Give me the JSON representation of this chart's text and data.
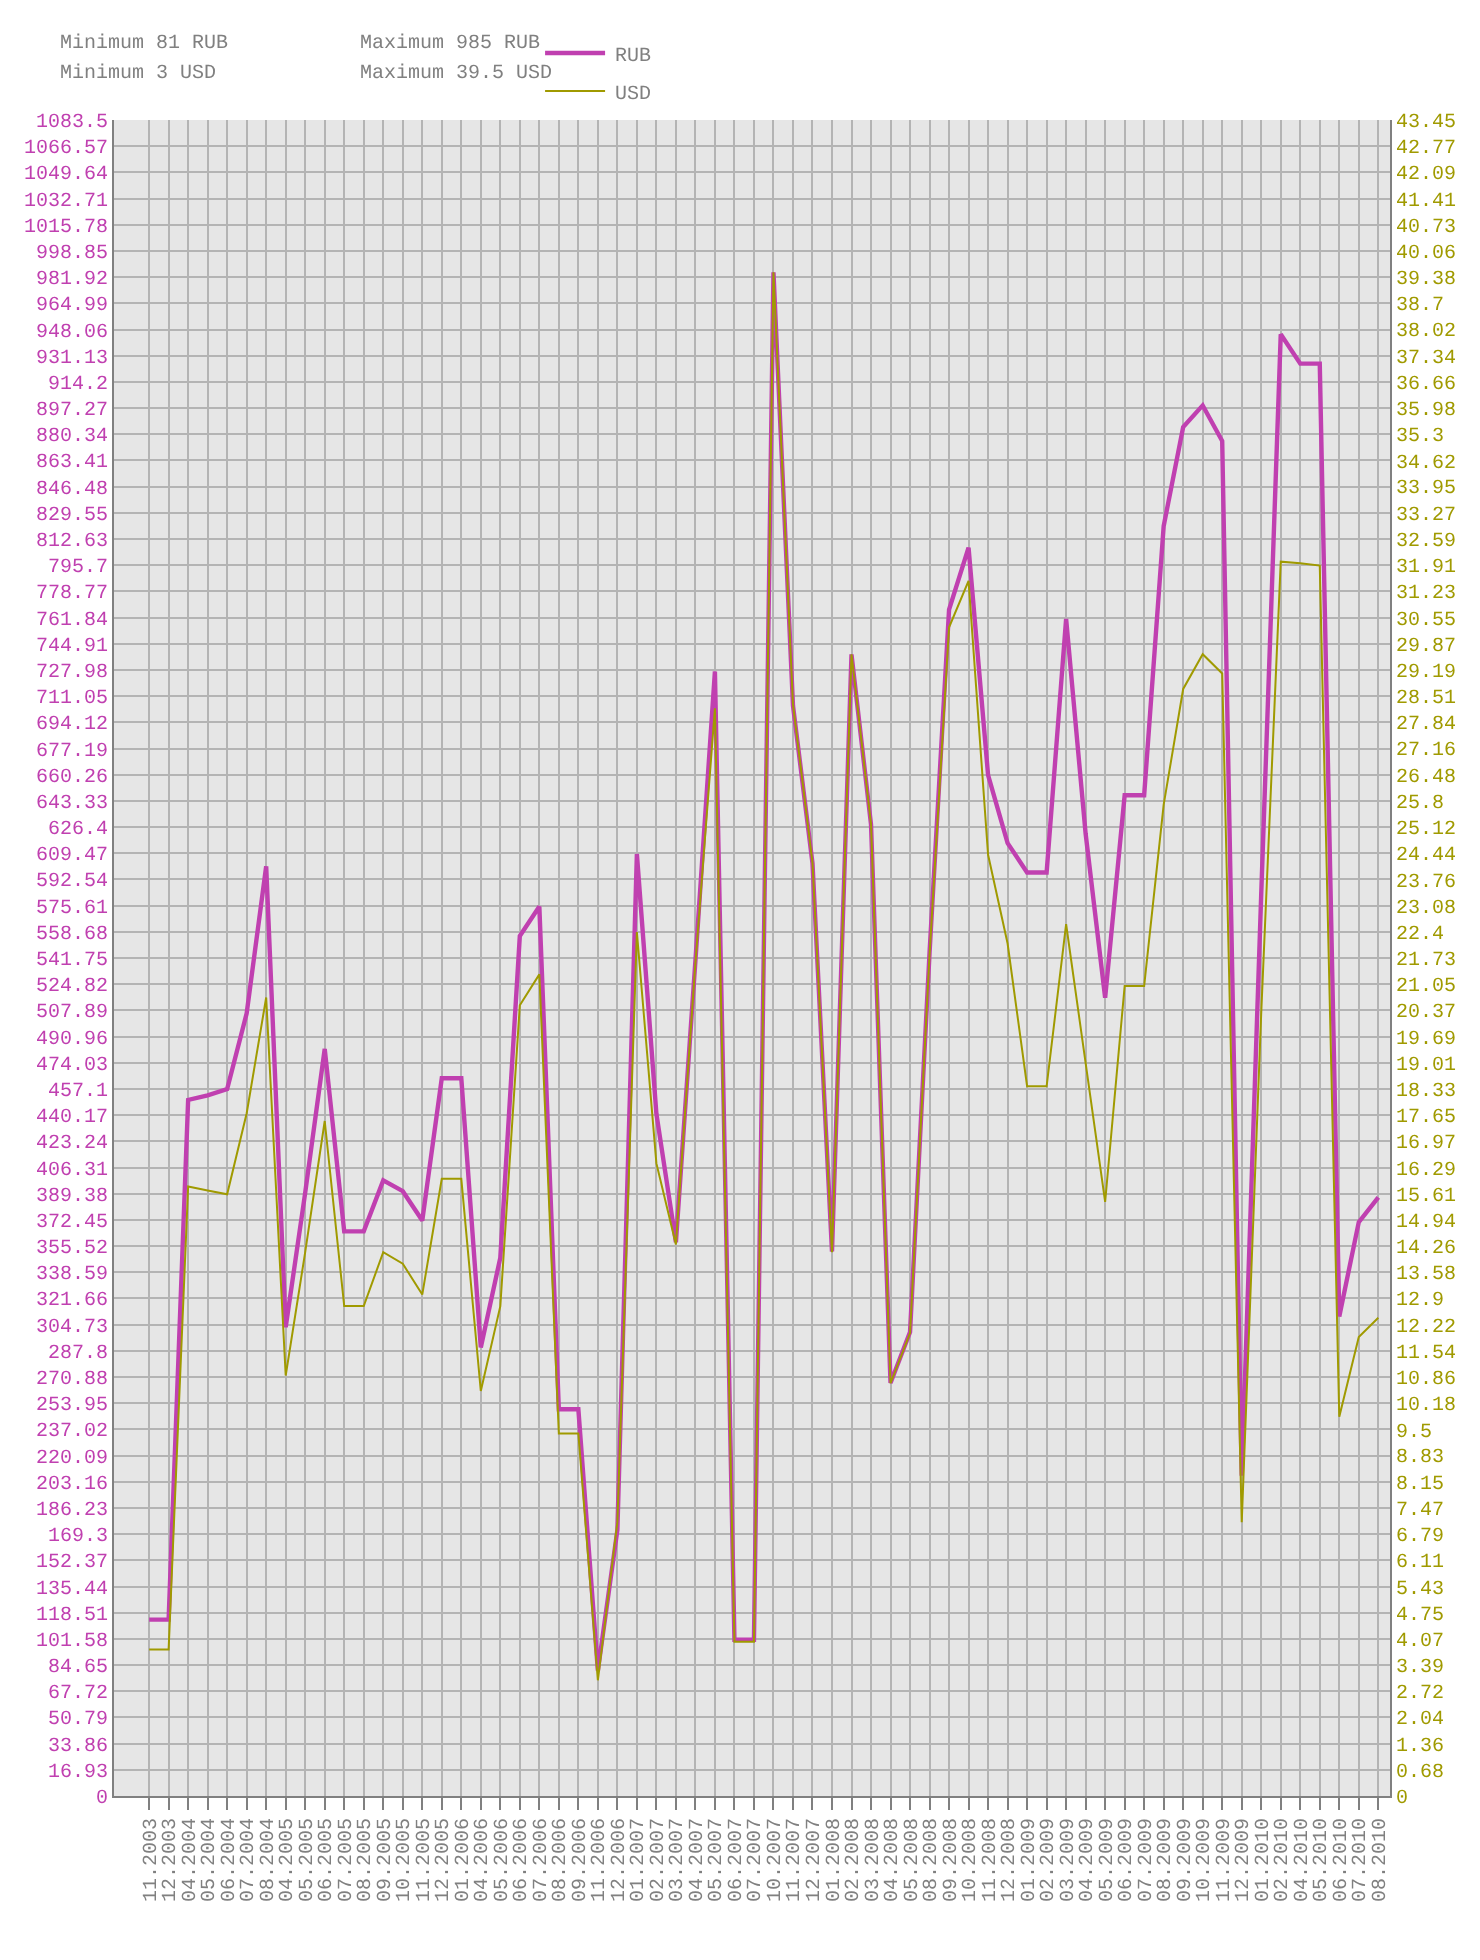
{
  "chart_data": {
    "type": "line",
    "annotations": [
      "Minimum 81 RUB",
      "Minimum 3 USD",
      "Maximum 985 RUB",
      "Maximum 39.5 USD"
    ],
    "categories": [
      "11.2003",
      "12.2003",
      "04.2004",
      "05.2004",
      "06.2004",
      "07.2004",
      "08.2004",
      "04.2005",
      "05.2005",
      "06.2005",
      "07.2005",
      "08.2005",
      "09.2005",
      "10.2005",
      "11.2005",
      "12.2005",
      "01.2006",
      "04.2006",
      "05.2006",
      "06.2006",
      "07.2006",
      "08.2006",
      "09.2006",
      "11.2006",
      "12.2006",
      "01.2007",
      "02.2007",
      "03.2007",
      "04.2007",
      "05.2007",
      "06.2007",
      "07.2007",
      "10.2007",
      "11.2007",
      "12.2007",
      "01.2008",
      "02.2008",
      "03.2008",
      "04.2008",
      "05.2008",
      "08.2008",
      "09.2008",
      "10.2008",
      "11.2008",
      "12.2008",
      "01.2009",
      "02.2009",
      "03.2009",
      "04.2009",
      "05.2009",
      "06.2009",
      "07.2009",
      "08.2009",
      "09.2009",
      "10.2009",
      "11.2009",
      "12.2009",
      "01.2010",
      "02.2010",
      "04.2010",
      "05.2010",
      "06.2010",
      "07.2010",
      "08.2010"
    ],
    "series": [
      {
        "name": "RUB",
        "color": "#c040b0",
        "values": [
          114,
          114,
          450,
          453,
          457,
          506,
          601,
          303,
          390,
          483,
          365,
          365,
          398,
          391,
          372,
          464,
          464,
          290,
          348,
          556,
          575,
          250,
          250,
          81,
          172,
          609,
          441,
          358,
          540,
          727,
          101,
          101,
          985,
          705,
          603,
          352,
          738,
          628,
          267,
          300,
          545,
          767,
          807,
          660,
          616,
          597,
          597,
          761,
          622,
          516,
          647,
          647,
          821,
          885,
          899,
          876,
          207,
          583,
          945,
          926,
          926,
          310,
          371,
          387
        ]
      },
      {
        "name": "USD",
        "color": "#a09a00",
        "axis": "y2",
        "values": [
          3.8,
          3.8,
          15.8,
          15.7,
          15.6,
          17.7,
          20.7,
          10.9,
          14.1,
          17.5,
          12.7,
          12.7,
          14.1,
          13.8,
          13.0,
          16.0,
          16.0,
          10.5,
          12.7,
          20.5,
          21.3,
          9.4,
          9.4,
          3.0,
          7.1,
          22.4,
          16.4,
          14.3,
          21.6,
          28.2,
          4.0,
          4.0,
          39.5,
          28.3,
          24.2,
          14.1,
          29.6,
          25.2,
          10.7,
          12.0,
          21.8,
          30.3,
          31.5,
          24.4,
          22.1,
          18.4,
          18.4,
          22.6,
          19.0,
          15.4,
          21.0,
          21.0,
          25.7,
          28.7,
          29.6,
          29.1,
          7.1,
          20.3,
          32.0,
          31.96,
          31.9,
          9.83,
          11.9,
          12.4
        ]
      }
    ],
    "ylim": [
      0,
      1083.5
    ],
    "yticks": [
      0,
      16.93,
      33.86,
      50.79,
      67.72,
      84.65,
      101.58,
      118.51,
      135.44,
      152.37,
      169.3,
      186.23,
      203.16,
      220.09,
      237.02,
      253.95,
      270.88,
      287.8,
      304.73,
      321.66,
      338.59,
      355.52,
      372.45,
      389.38,
      406.31,
      423.24,
      440.17,
      457.1,
      474.03,
      490.96,
      507.89,
      524.82,
      541.75,
      558.68,
      575.61,
      592.54,
      609.47,
      626.4,
      643.33,
      660.26,
      677.19,
      694.12,
      711.05,
      727.98,
      744.91,
      761.84,
      778.77,
      795.7,
      812.63,
      829.55,
      846.48,
      863.41,
      880.34,
      897.27,
      914.2,
      931.13,
      948.06,
      964.99,
      981.92,
      998.85,
      1015.78,
      1032.71,
      1049.64,
      1066.57,
      1083.5
    ],
    "y2lim": [
      0,
      43.45
    ],
    "y2ticks": [
      0,
      0.68,
      1.36,
      2.04,
      2.72,
      3.39,
      4.07,
      4.75,
      5.43,
      6.11,
      6.79,
      7.47,
      8.15,
      8.83,
      9.5,
      10.18,
      10.86,
      11.54,
      12.22,
      12.9,
      13.58,
      14.26,
      14.94,
      15.61,
      16.29,
      16.97,
      17.65,
      18.33,
      19.01,
      19.69,
      20.37,
      21.05,
      21.73,
      22.4,
      23.08,
      23.76,
      24.44,
      25.12,
      25.8,
      26.48,
      27.16,
      27.84,
      28.51,
      29.19,
      29.87,
      30.55,
      31.23,
      31.91,
      32.59,
      33.27,
      33.95,
      34.62,
      35.3,
      35.98,
      36.66,
      37.34,
      38.02,
      38.7,
      39.38,
      40.06,
      40.73,
      41.41,
      42.09,
      42.77,
      43.45
    ],
    "grid": true,
    "legend": "top",
    "marker": "none",
    "line_style": "solid"
  }
}
